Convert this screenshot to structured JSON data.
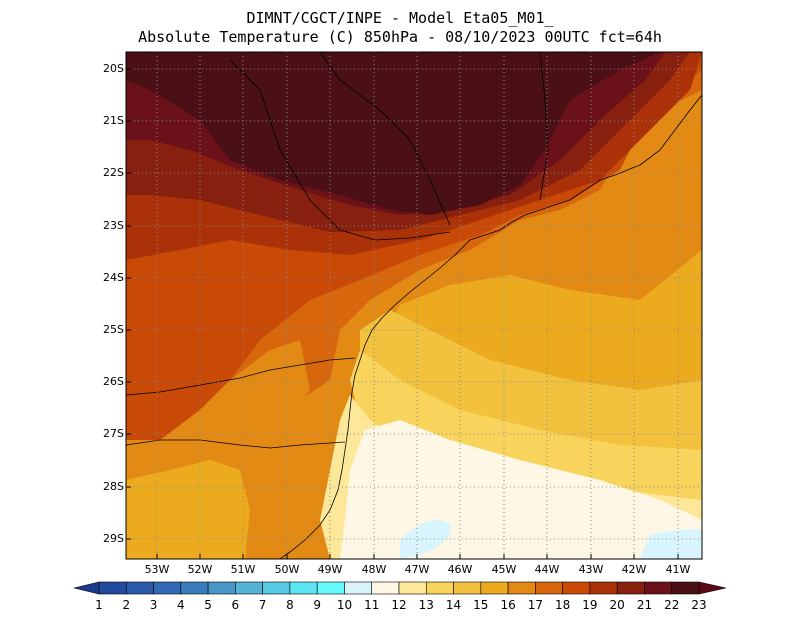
{
  "header": {
    "line1": "DIMNT/CGCT/INPE -  Model Eta05_M01_",
    "line2": "Absolute Temperature (C) 850hPa -  08/10/2023 00UTC fct=64h"
  },
  "map": {
    "variable": "Absolute Temperature (C) 850hPa",
    "lat_labels": [
      "20S",
      "21S",
      "22S",
      "23S",
      "24S",
      "25S",
      "26S",
      "27S",
      "28S",
      "29S"
    ],
    "lon_labels": [
      "53W",
      "52W",
      "51W",
      "50W",
      "49W",
      "48W",
      "47W",
      "46W",
      "45W",
      "44W",
      "43W",
      "42W",
      "41W"
    ],
    "colors": {
      "lt12": "#d8f4fc",
      "12": "#fef7e6",
      "13": "#fde89a",
      "14": "#f8d45c",
      "15": "#f2c23f",
      "16": "#ecab1f",
      "17": "#e38a14",
      "18": "#d8660c",
      "19": "#c84a06",
      "20": "#ab3208",
      "21": "#87200e",
      "22": "#6a1119",
      "23": "#4a1015"
    }
  },
  "colorbar": {
    "labels": [
      "1",
      "2",
      "3",
      "4",
      "5",
      "6",
      "7",
      "8",
      "9",
      "10",
      "11",
      "12",
      "13",
      "14",
      "15",
      "16",
      "17",
      "18",
      "19",
      "20",
      "21",
      "22",
      "23"
    ],
    "colors": [
      "#1a3a8c",
      "#21499c",
      "#2a5aa8",
      "#3169b2",
      "#3a7dbd",
      "#4a97c7",
      "#55b2d5",
      "#57cbe4",
      "#5ee5f2",
      "#68fbfd",
      "#d7f3fc",
      "#fef7e6",
      "#fde89a",
      "#f8d45c",
      "#f2c23f",
      "#ecab1f",
      "#e38a14",
      "#d8660c",
      "#c84a06",
      "#ab3208",
      "#87200e",
      "#6a1119",
      "#4a1015",
      "#5a0a14"
    ]
  }
}
